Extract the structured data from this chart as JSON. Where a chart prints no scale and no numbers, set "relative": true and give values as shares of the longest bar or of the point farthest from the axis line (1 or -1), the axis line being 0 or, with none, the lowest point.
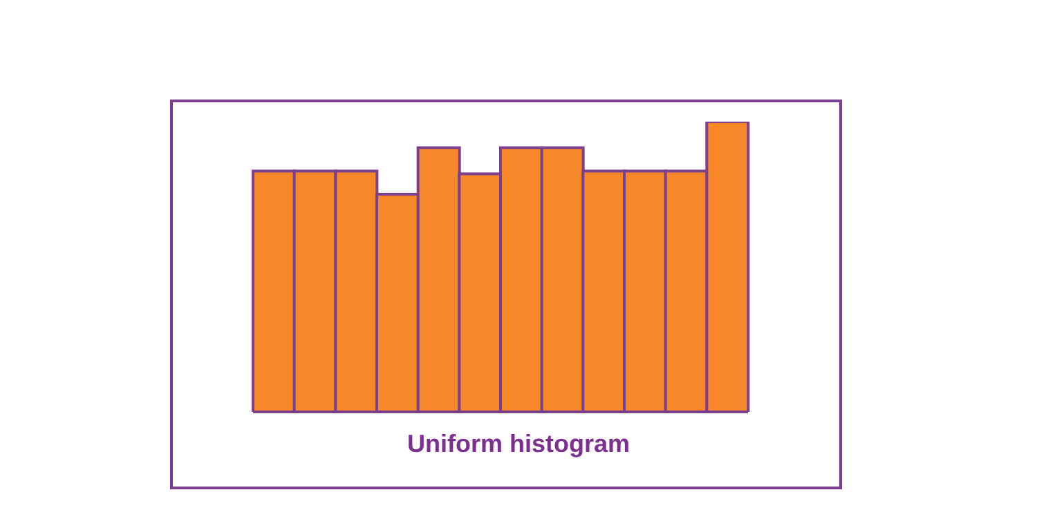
{
  "chart_data": {
    "type": "bar",
    "title": "Uniform histogram",
    "relative": true,
    "categories": [
      null,
      null,
      null,
      null,
      null,
      null,
      null,
      null,
      null,
      null,
      null,
      null
    ],
    "values": [
      0.83,
      0.83,
      0.83,
      0.75,
      0.91,
      0.82,
      0.91,
      0.91,
      0.83,
      0.83,
      0.83,
      1
    ],
    "color": "#f7882a",
    "grid": false,
    "legend": false
  }
}
